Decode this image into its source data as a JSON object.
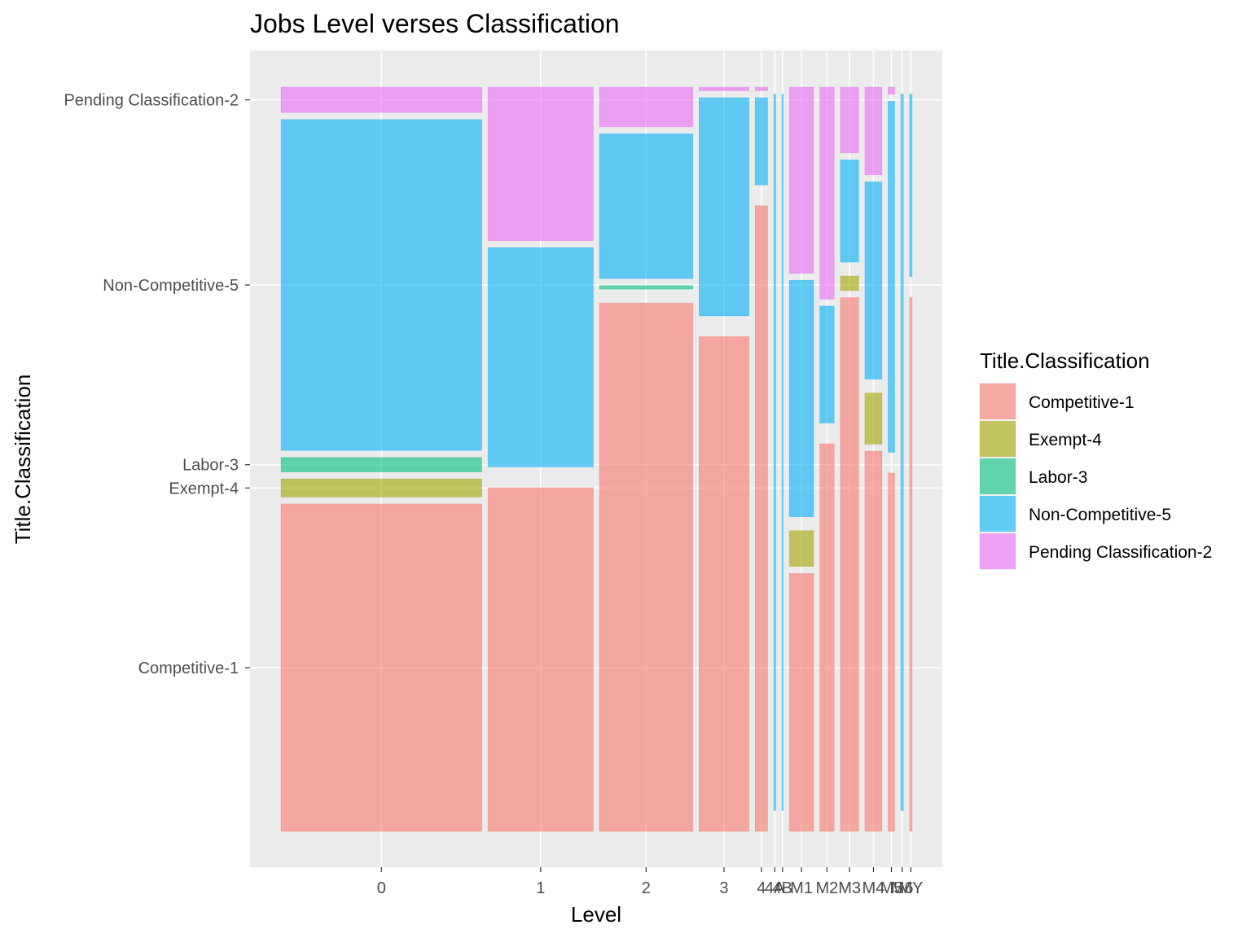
{
  "chart_data": {
    "type": "mosaic",
    "title": "Jobs Level verses Classification",
    "xlabel": "Level",
    "ylabel": "Title.Classification",
    "legend_title": "Title.Classification",
    "legend_position": "right",
    "grid": true,
    "x_tick_labels": [
      "0",
      "1",
      "2",
      "3",
      "4",
      "4A",
      "4B",
      "M1",
      "M2",
      "M3",
      "M4",
      "M5",
      "M6",
      "MY"
    ],
    "y_tick_labels": [
      "Competitive-1",
      "Exempt-4",
      "Labor-3",
      "Non-Competitive-5",
      "Pending Classification-2"
    ],
    "categories": [
      "Competitive-1",
      "Exempt-4",
      "Labor-3",
      "Non-Competitive-5",
      "Pending Classification-2"
    ],
    "colors": {
      "Competitive-1": "#F8766D",
      "Exempt-4": "#A3A500",
      "Labor-3": "#00BF7D",
      "Non-Competitive-5": "#00B0F6",
      "Pending Classification-2": "#E76BF3"
    },
    "levels": [
      {
        "level": "0",
        "share": 0.305,
        "proportions": [
          0.45,
          0.025,
          0.02,
          0.455,
          0.035
        ]
      },
      {
        "level": "1",
        "share": 0.16,
        "proportions": [
          0.47,
          0.0,
          0.0,
          0.3,
          0.21
        ]
      },
      {
        "level": "2",
        "share": 0.142,
        "proportions": [
          0.73,
          0.0,
          0.005,
          0.2,
          0.055
        ]
      },
      {
        "level": "3",
        "share": 0.076,
        "proportions": [
          0.68,
          0.0,
          0.0,
          0.3,
          0.005
        ]
      },
      {
        "level": "4",
        "share": 0.019,
        "proportions": [
          0.86,
          0.0,
          0.0,
          0.12,
          0.005
        ]
      },
      {
        "level": "4A",
        "share": 0.003,
        "proportions": [
          0.0,
          0.0,
          0.0,
          1.0,
          0.0
        ]
      },
      {
        "level": "4B",
        "share": 0.002,
        "proportions": [
          0.0,
          0.0,
          0.0,
          1.0,
          0.0
        ]
      },
      {
        "level": "M1",
        "share": 0.037,
        "proportions": [
          0.36,
          0.05,
          0.0,
          0.33,
          0.26
        ]
      },
      {
        "level": "M2",
        "share": 0.022,
        "proportions": [
          0.53,
          0.0,
          0.0,
          0.16,
          0.29
        ]
      },
      {
        "level": "M3",
        "share": 0.028,
        "proportions": [
          0.73,
          0.02,
          0.0,
          0.14,
          0.09
        ]
      },
      {
        "level": "M4",
        "share": 0.026,
        "proportions": [
          0.52,
          0.07,
          0.0,
          0.27,
          0.12
        ]
      },
      {
        "level": "M5",
        "share": 0.01,
        "proportions": [
          0.5,
          0.0,
          0.0,
          0.49,
          0.01
        ]
      },
      {
        "level": "M6",
        "share": 0.004,
        "proportions": [
          0.0,
          0.0,
          0.0,
          1.0,
          0.0
        ]
      },
      {
        "level": "MY",
        "share": 0.004,
        "proportions": [
          0.73,
          0.0,
          0.0,
          0.25,
          0.0
        ]
      }
    ]
  }
}
